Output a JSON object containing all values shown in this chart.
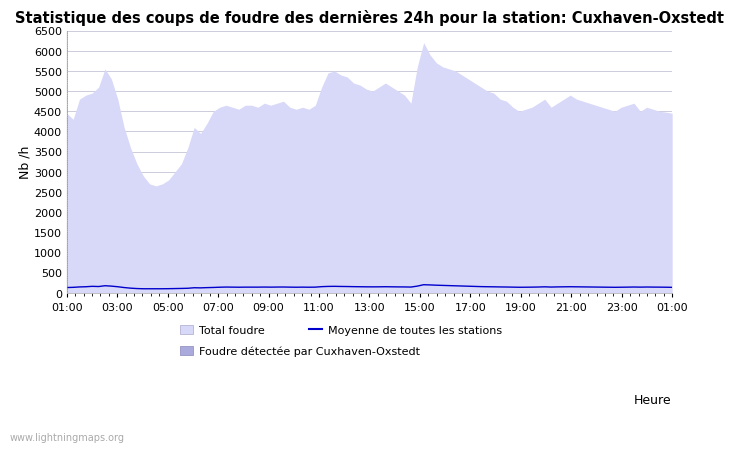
{
  "title": "Statistique des coups de foudre des dernières 24h pour la station: Cuxhaven-Oxstedt",
  "xlabel": "Heure",
  "ylabel": "Nb /h",
  "watermark": "www.lightningmaps.org",
  "ylim": [
    0,
    6500
  ],
  "yticks": [
    0,
    500,
    1000,
    1500,
    2000,
    2500,
    3000,
    3500,
    4000,
    4500,
    5000,
    5500,
    6000,
    6500
  ],
  "xtick_labels": [
    "01:00",
    "03:00",
    "05:00",
    "07:00",
    "09:00",
    "11:00",
    "13:00",
    "15:00",
    "17:00",
    "19:00",
    "21:00",
    "23:00",
    "01:00"
  ],
  "legend_labels": [
    "Total foudre",
    "Moyenne de toutes les stations",
    "Foudre détectée par Cuxhaven-Oxstedt"
  ],
  "fill_color_total": "#d8d8f8",
  "fill_color_local": "#aaaadd",
  "line_color_mean": "#0000cc",
  "bg_color": "#ffffff",
  "plot_bg_color": "#ffffff",
  "grid_color": "#ccccdd",
  "title_fontsize": 10.5,
  "axis_fontsize": 9,
  "tick_fontsize": 8,
  "total_foudre": [
    4450,
    4300,
    4800,
    4900,
    4950,
    5100,
    5550,
    5300,
    4800,
    4100,
    3600,
    3200,
    2900,
    2700,
    2650,
    2700,
    2800,
    3000,
    3200,
    3600,
    4100,
    3950,
    4200,
    4500,
    4600,
    4650,
    4600,
    4550,
    4650,
    4650,
    4600,
    4700,
    4650,
    4700,
    4750,
    4600,
    4550,
    4600,
    4550,
    4650,
    5100,
    5450,
    5500,
    5400,
    5350,
    5200,
    5150,
    5050,
    5000,
    5100,
    5200,
    5100,
    5000,
    4900,
    4700,
    5600,
    6200,
    5900,
    5700,
    5600,
    5550,
    5500,
    5400,
    5300,
    5200,
    5100,
    5000,
    4950,
    4800,
    4750,
    4600,
    4500,
    4550,
    4600,
    4700,
    4800,
    4600,
    4700,
    4800,
    4900,
    4800,
    4750,
    4700,
    4650,
    4600,
    4550,
    4500,
    4600,
    4650,
    4700,
    4500,
    4600,
    4550,
    4500,
    4480,
    4450
  ],
  "mean_line": [
    130,
    135,
    145,
    150,
    160,
    155,
    175,
    165,
    150,
    130,
    115,
    105,
    100,
    100,
    100,
    100,
    102,
    105,
    108,
    112,
    125,
    122,
    128,
    132,
    138,
    142,
    140,
    138,
    140,
    140,
    140,
    142,
    140,
    142,
    143,
    140,
    138,
    140,
    138,
    140,
    152,
    158,
    160,
    157,
    155,
    152,
    150,
    148,
    147,
    148,
    150,
    148,
    146,
    145,
    142,
    165,
    200,
    195,
    188,
    183,
    178,
    173,
    168,
    163,
    158,
    153,
    150,
    148,
    145,
    143,
    140,
    137,
    138,
    140,
    143,
    148,
    142,
    146,
    148,
    150,
    148,
    146,
    144,
    142,
    140,
    138,
    136,
    138,
    140,
    143,
    140,
    143,
    141,
    140,
    138,
    135
  ]
}
